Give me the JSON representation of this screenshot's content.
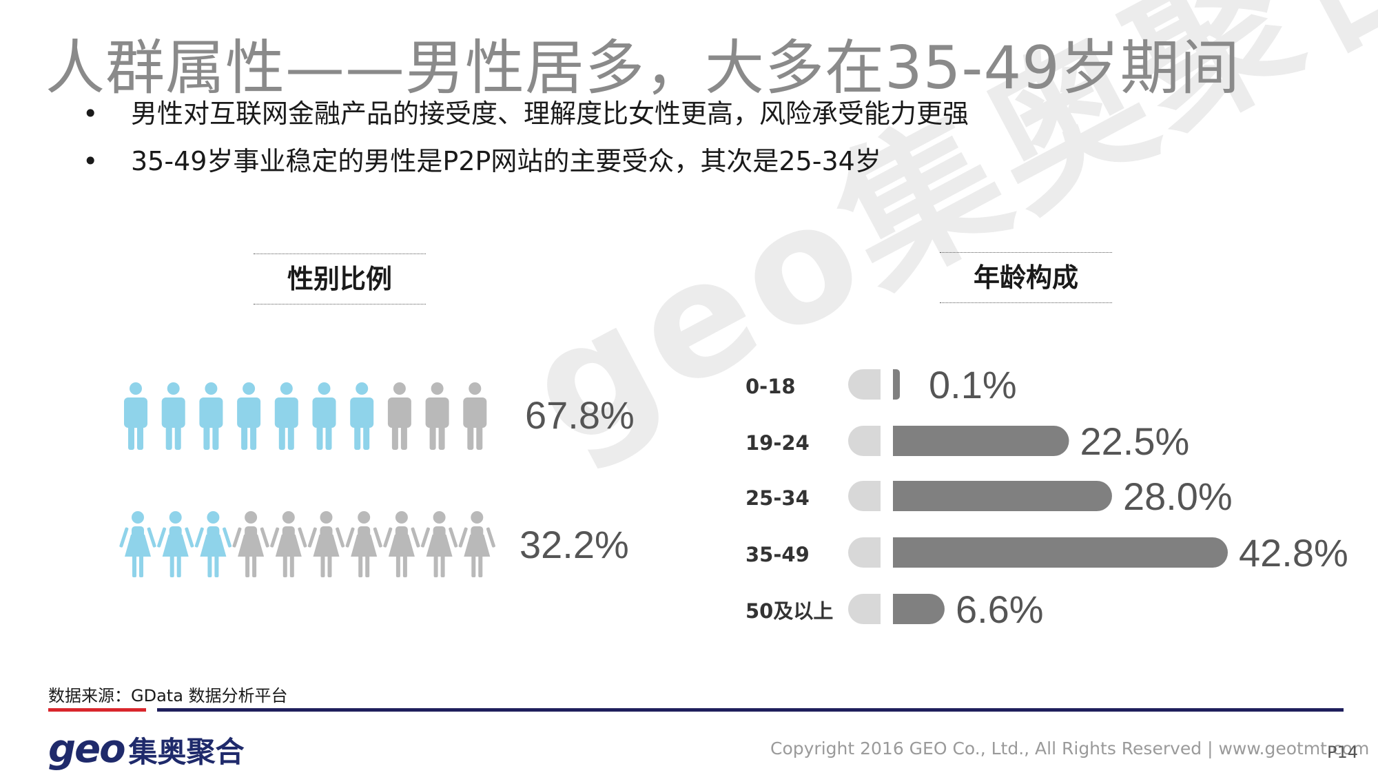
{
  "title": "人群属性——男性居多，大多在35-49岁期间",
  "bullets": [
    "男性对互联网金融产品的接受度、理解度比女性更高，风险承受能力更强",
    "35-49岁事业稳定的男性是P2P网站的主要受众，其次是25-34岁"
  ],
  "watermark": "geo集奥聚合",
  "gender_section": {
    "heading": "性别比例"
  },
  "age_section": {
    "heading": "年龄构成"
  },
  "chart_data": [
    {
      "type": "pictograph",
      "total_icons": 10,
      "series": [
        {
          "name": "",
          "icon": "male-person-icon",
          "value": 67.8,
          "label": "67.8%",
          "highlighted_icons": 7,
          "highlight_color": "#8fd3ea"
        },
        {
          "name": "",
          "icon": "female-person-icon",
          "value": 32.2,
          "label": "32.2%",
          "highlighted_icons": 3,
          "highlight_color": "#8fd3ea"
        }
      ],
      "base_color": "#b9b9b9"
    },
    {
      "type": "bar",
      "orientation": "horizontal",
      "categories": [
        "0-18",
        "19-24",
        "25-34",
        "35-49",
        "50及以上"
      ],
      "values": [
        0.1,
        22.5,
        28.0,
        42.8,
        6.6
      ],
      "data_labels": [
        "0.1%",
        "22.5%",
        "28.0%",
        "42.8%",
        "6.6%"
      ],
      "xlim": [
        0,
        42.8
      ],
      "bar_color": "#808080",
      "cap_color": "#d8d8d8",
      "grid": false
    }
  ],
  "footer": {
    "source": "数据来源：GData  数据分析平台",
    "logo_geo": "geo",
    "logo_cn": "集奥聚合",
    "copyright": "Copyright 2016 GEO Co., Ltd., All Rights Reserved   |  www.geotmt.com",
    "page": "P14"
  },
  "colors": {
    "title": "#8a8a8a",
    "navy": "#1f1f5c",
    "red": "#d9262c"
  }
}
